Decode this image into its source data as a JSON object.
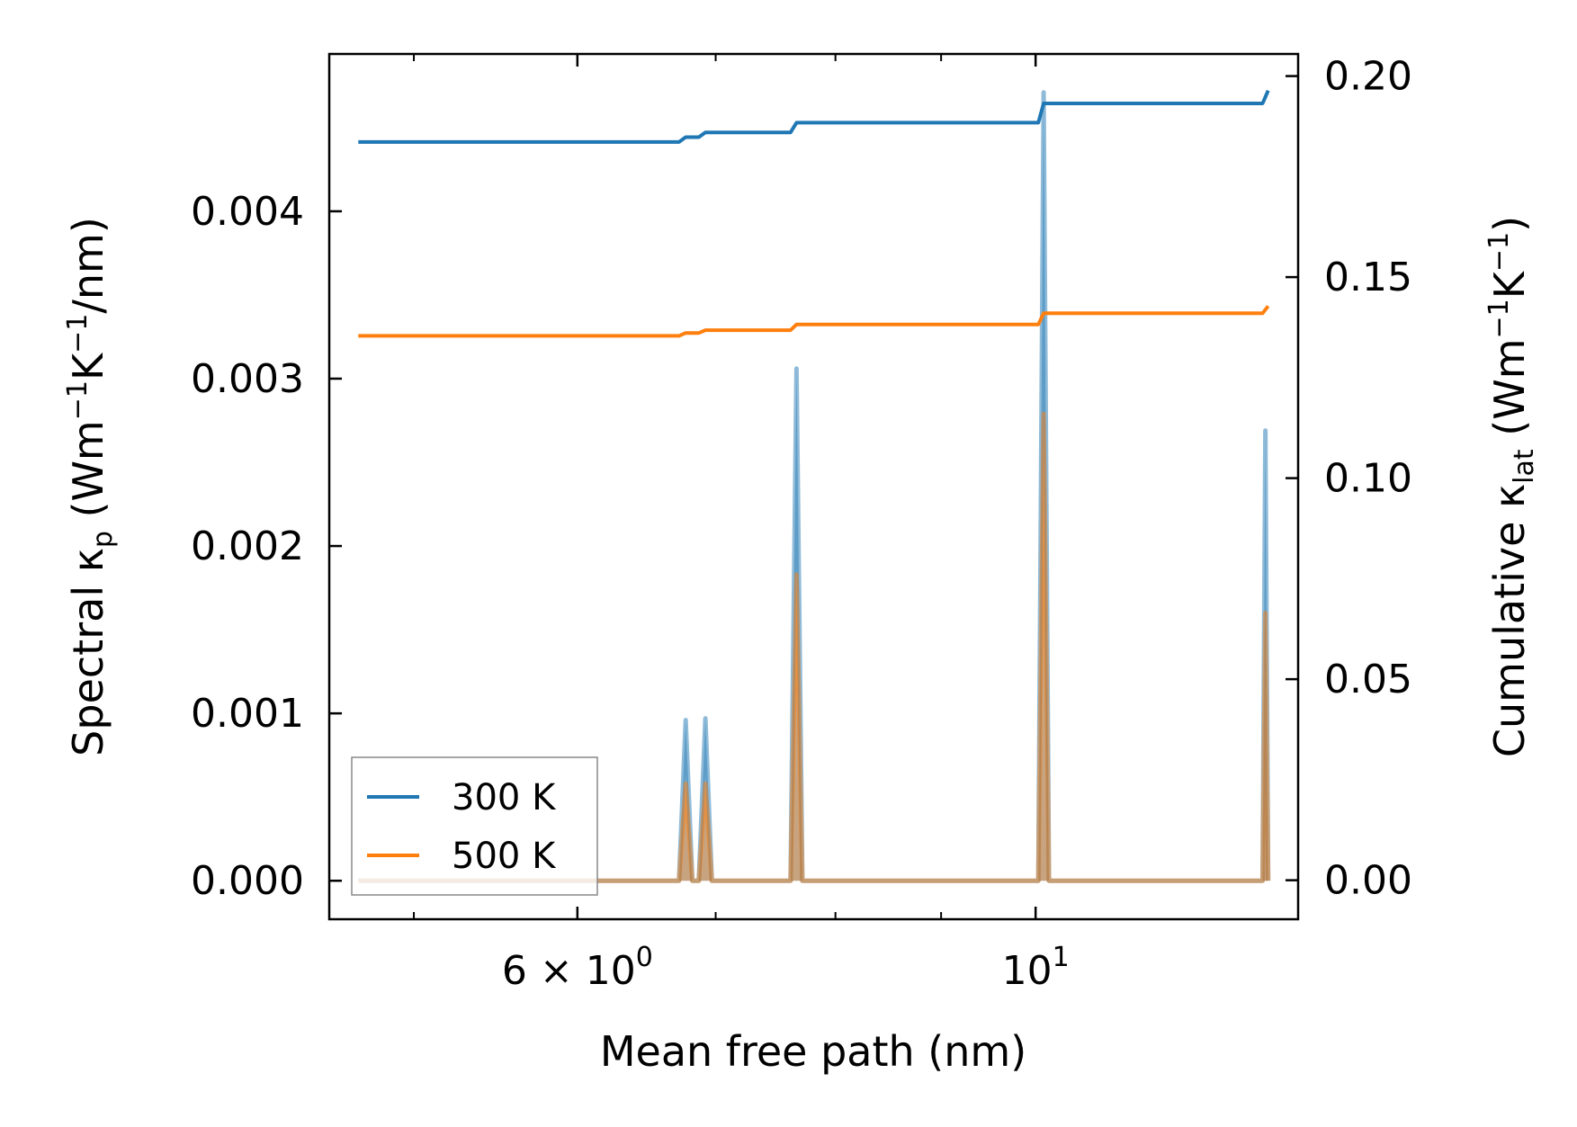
{
  "chart_data": {
    "type": "line",
    "xlabel": "Mean free path (nm)",
    "ylabel_left_parts": [
      "Spectral κ",
      "p",
      " (Wm",
      "−1",
      "K",
      "−1",
      "/nm)"
    ],
    "ylabel_right_parts": [
      "Cumulative κ",
      "lat",
      " (Wm",
      "−1",
      "K",
      "−1",
      ")"
    ],
    "x_scale": "log",
    "xlim": [
      4.55,
      13.4
    ],
    "ylim_left": [
      -0.00023,
      0.00494
    ],
    "ylim_right": [
      -0.0097,
      0.2055
    ],
    "x_major_ticks": [
      {
        "value": 6,
        "label_main": "6 × 10",
        "label_sup": "0"
      },
      {
        "value": 10,
        "label_main": "10",
        "label_sup": "1"
      }
    ],
    "x_minor_ticks": [
      5,
      7,
      8,
      9
    ],
    "y_left_ticks": [
      {
        "value": 0.0,
        "label": "0.000"
      },
      {
        "value": 0.001,
        "label": "0.001"
      },
      {
        "value": 0.002,
        "label": "0.002"
      },
      {
        "value": 0.003,
        "label": "0.003"
      },
      {
        "value": 0.004,
        "label": "0.004"
      }
    ],
    "y_right_ticks": [
      {
        "value": 0.0,
        "label": "0.00"
      },
      {
        "value": 0.05,
        "label": "0.05"
      },
      {
        "value": 0.1,
        "label": "0.10"
      },
      {
        "value": 0.15,
        "label": "0.15"
      },
      {
        "value": 0.2,
        "label": "0.20"
      }
    ],
    "spectral_series": [
      {
        "name": "300 K",
        "color": "#1f77b4",
        "x": [
          4.7,
          6.72,
          6.77,
          6.82,
          6.87,
          6.92,
          6.97,
          7.61,
          7.66,
          7.71,
          10.03,
          10.09,
          10.15,
          12.88,
          12.92,
          12.96
        ],
        "y": [
          0.0,
          0.0,
          0.00096,
          0.0,
          0.0,
          0.00097,
          0.0,
          0.0,
          0.00306,
          0.0,
          0.0,
          0.00471,
          0.0,
          0.0,
          0.00269,
          0.0
        ]
      },
      {
        "name": "500 K",
        "color": "#ff7f0e",
        "x": [
          4.7,
          6.72,
          6.77,
          6.82,
          6.87,
          6.92,
          6.97,
          7.61,
          7.66,
          7.71,
          10.03,
          10.09,
          10.15,
          12.88,
          12.92,
          12.96
        ],
        "y": [
          0.0,
          0.0,
          0.00058,
          0.0,
          0.0,
          0.00058,
          0.0,
          0.0,
          0.00183,
          0.0,
          0.0,
          0.00279,
          0.0,
          0.0,
          0.0016,
          0.0
        ]
      }
    ],
    "cumulative_series": [
      {
        "name": "300 K",
        "color": "#1f77b4",
        "x": [
          4.7,
          6.72,
          6.77,
          6.87,
          6.92,
          7.61,
          7.66,
          10.03,
          10.09,
          12.88,
          12.96
        ],
        "y": [
          0.1836,
          0.1836,
          0.1848,
          0.1848,
          0.186,
          0.186,
          0.1884,
          0.1884,
          0.1932,
          0.1932,
          0.1964
        ]
      },
      {
        "name": "500 K",
        "color": "#ff7f0e",
        "x": [
          4.7,
          6.72,
          6.77,
          6.87,
          6.92,
          7.61,
          7.66,
          10.03,
          10.09,
          12.88,
          12.96
        ],
        "y": [
          0.1354,
          0.1354,
          0.1361,
          0.1361,
          0.1368,
          0.1368,
          0.1382,
          0.1382,
          0.141,
          0.141,
          0.1428
        ]
      }
    ],
    "legend": {
      "placement": "lower-left",
      "entries": [
        {
          "label": "300 K",
          "color": "#1f77b4"
        },
        {
          "label": "500 K",
          "color": "#ff7f0e"
        }
      ]
    },
    "grid": false
  }
}
